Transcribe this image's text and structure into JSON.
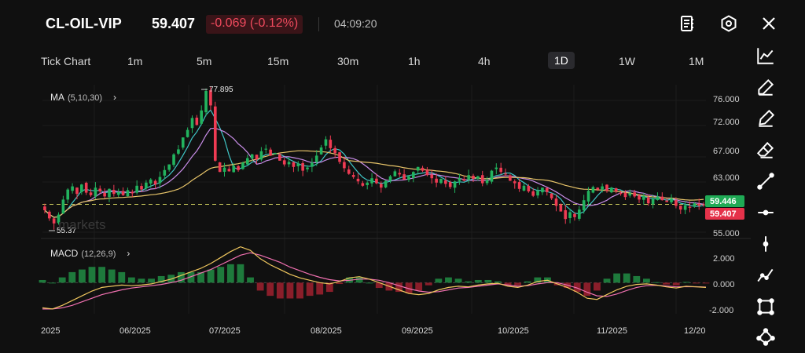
{
  "header": {
    "symbol": "CL-OIL-VIP",
    "price": "59.407",
    "change": "-0.069 (-0.12%)",
    "time": "04:09:20"
  },
  "icons": {
    "top": [
      "notes-icon",
      "settings-hex-icon",
      "close-icon"
    ],
    "tools": [
      "line-chart-icon",
      "pencil-icon",
      "pen-icon",
      "eraser-icon",
      "trend-line-icon",
      "horizontal-line-icon",
      "vertical-line-icon",
      "path-icon",
      "rectangle-icon",
      "nodes-icon"
    ]
  },
  "timeframes": [
    "Tick Chart",
    "1m",
    "5m",
    "15m",
    "30m",
    "1h",
    "4h",
    "1D",
    "1W",
    "1M"
  ],
  "active_timeframe": "1D",
  "indicators": {
    "ma": {
      "name": "MA",
      "params": "(5,10,30)"
    },
    "macd": {
      "name": "MACD",
      "params": "(12,26,9)"
    }
  },
  "watermark": "markets",
  "colors": {
    "up": "#22b35e",
    "down": "#ef3b53",
    "ma5": "#3fc6c6",
    "ma10": "#c88de8",
    "ma30": "#e8c56a",
    "macd_line": "#f0c75e",
    "signal_line": "#f070b0",
    "hist_up": "#1e7a3c",
    "hist_down": "#8a1e2a",
    "current_line": "#c8c85a",
    "price_tag_green": "#1faa55",
    "price_tag_red": "#e5324a"
  },
  "chart_data": {
    "type": "candlestick",
    "x_tick_labels": [
      "2025",
      "06/2025",
      "07/2025",
      "08/2025",
      "09/2025",
      "10/2025",
      "11/2025",
      "12/20"
    ],
    "y_tick_labels": [
      "76.000",
      "72.000",
      "67.000",
      "63.000",
      "55.000"
    ],
    "price_tags": {
      "bid": "59.446",
      "last": "59.407"
    },
    "annotations": {
      "high": "77.895",
      "low": "55.37"
    },
    "macd_y_tick_labels": [
      "2.000",
      "0.000",
      "-2.000"
    ],
    "ylim": [
      54.5,
      78.5
    ],
    "macd_ylim": [
      -2.6,
      3.3
    ],
    "close_path": [
      58.5,
      57.2,
      56.4,
      57.8,
      60.2,
      61.8,
      62.3,
      61.1,
      62.6,
      61.3,
      60.9,
      62.1,
      61.5,
      60.7,
      61.9,
      61.1,
      61.4,
      60.9,
      61.7,
      61.2,
      62.4,
      61.8,
      62.9,
      63.4,
      62.6,
      63.8,
      64.9,
      65.8,
      67.4,
      68.2,
      70.1,
      71.3,
      73.2,
      72.1,
      74.4,
      77.5,
      75.2,
      66.4,
      64.6,
      65.3,
      64.7,
      65.6,
      64.9,
      66.1,
      66.8,
      67.4,
      66.6,
      67.9,
      68.3,
      67.2,
      67.6,
      66.4,
      65.8,
      66.2,
      65.4,
      65.9,
      64.8,
      65.3,
      66.1,
      67.2,
      68.5,
      69.8,
      68.4,
      67.6,
      66.2,
      65.2,
      64.3,
      63.8,
      63.1,
      62.4,
      62.9,
      63.6,
      62.8,
      62.1,
      63.2,
      63.9,
      64.7,
      64.2,
      63.4,
      63.9,
      64.6,
      65.4,
      64.8,
      64.1,
      63.6,
      62.9,
      63.5,
      62.7,
      62.2,
      63.1,
      63.6,
      63.2,
      64.1,
      63.5,
      63.9,
      62.8,
      63.3,
      64.8,
      65.3,
      64.6,
      64.2,
      63.2,
      62.8,
      61.9,
      62.4,
      61.5,
      60.8,
      61.6,
      62.1,
      61.4,
      60.4,
      59.2,
      58.3,
      57.1,
      58.2,
      57.4,
      58.6,
      60.1,
      61.6,
      62.2,
      61.8,
      62.3,
      61.6,
      62.1,
      61.5,
      61.1,
      60.6,
      61.2,
      60.7,
      60.2,
      60.8,
      59.6,
      60.3,
      60.7,
      60.1,
      59.8,
      60.4,
      59.2,
      58.6,
      59.3,
      58.9,
      59.6,
      59.2,
      59.4
    ],
    "macd_line_path": [
      -2.1,
      -2.2,
      -1.9,
      -1.5,
      -1.1,
      -0.7,
      -0.4,
      -0.3,
      -0.2,
      -0.25,
      -0.2,
      -0.1,
      0.1,
      0.3,
      0.6,
      0.9,
      1.2,
      1.6,
      2.1,
      2.6,
      3.0,
      2.7,
      2.0,
      1.5,
      1.1,
      0.7,
      0.4,
      0.2,
      0.0,
      -0.1,
      0.1,
      0.4,
      0.5,
      0.3,
      0.0,
      -0.3,
      -0.6,
      -0.9,
      -1.0,
      -0.9,
      -0.6,
      -0.4,
      -0.3,
      -0.35,
      -0.2,
      -0.1,
      -0.05,
      -0.3,
      -0.4,
      -0.2,
      0.1,
      0.2,
      -0.1,
      -0.4,
      -0.8,
      -1.3,
      -1.4,
      -1.0,
      -0.6,
      -0.3,
      -0.15,
      -0.1,
      -0.2,
      -0.35,
      -0.45,
      -0.3,
      -0.35,
      -0.4
    ],
    "signal_line_path": [
      -2.2,
      -2.2,
      -2.1,
      -1.9,
      -1.6,
      -1.3,
      -1.0,
      -0.8,
      -0.6,
      -0.45,
      -0.35,
      -0.25,
      -0.15,
      0.0,
      0.2,
      0.5,
      0.8,
      1.1,
      1.5,
      1.9,
      2.3,
      2.5,
      2.3,
      2.0,
      1.7,
      1.3,
      1.0,
      0.7,
      0.45,
      0.25,
      0.15,
      0.2,
      0.3,
      0.3,
      0.2,
      0.0,
      -0.25,
      -0.5,
      -0.7,
      -0.8,
      -0.75,
      -0.6,
      -0.45,
      -0.4,
      -0.3,
      -0.2,
      -0.1,
      -0.2,
      -0.3,
      -0.25,
      -0.1,
      0.0,
      0.0,
      -0.2,
      -0.45,
      -0.8,
      -1.1,
      -1.15,
      -0.95,
      -0.65,
      -0.4,
      -0.25,
      -0.22,
      -0.28,
      -0.35,
      -0.33,
      -0.34,
      -0.37
    ]
  }
}
